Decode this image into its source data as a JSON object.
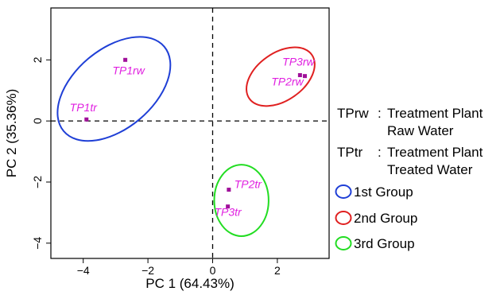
{
  "chart_data": {
    "type": "scatter",
    "xlabel": "PC 1 (64.43%)",
    "ylabel": "PC 2 (35.36%)",
    "xlim": [
      -5.0,
      3.6
    ],
    "ylim": [
      -4.5,
      3.7
    ],
    "xticks": [
      -4,
      -2,
      0,
      2
    ],
    "yticks": [
      -4,
      -2,
      0,
      2
    ],
    "xtick_labels": [
      "−4",
      "−2",
      "0",
      "2"
    ],
    "ytick_labels": [
      "−4",
      "−2",
      "0",
      "2"
    ],
    "reference_lines": {
      "x": 0,
      "y": 0,
      "style": "dashed"
    },
    "point_color": "#a0109a",
    "label_color": "#e020e0",
    "points": [
      {
        "label": "TP1rw",
        "x": -2.7,
        "y": 2.0
      },
      {
        "label": "TP1tr",
        "x": -3.9,
        "y": 0.05
      },
      {
        "label": "TP3rw",
        "x": 2.7,
        "y": 1.5
      },
      {
        "label": "TP2rw",
        "x": 2.85,
        "y": 1.47
      },
      {
        "label": "TP2tr",
        "x": 0.5,
        "y": -2.25
      },
      {
        "label": "TP3tr",
        "x": 0.47,
        "y": -2.8
      }
    ],
    "groups": [
      {
        "name": "1st Group",
        "color": "#1f3fd6",
        "cx": -3.05,
        "cy": 1.05,
        "rx": 2.03,
        "ry": 1.3,
        "angle_deg": 40
      },
      {
        "name": "2nd Group",
        "color": "#e02020",
        "cx": 2.1,
        "cy": 1.45,
        "rx": 1.18,
        "ry": 0.78,
        "angle_deg": 35
      },
      {
        "name": "3rd Group",
        "color": "#22dd22",
        "cx": 0.89,
        "cy": -2.6,
        "rx": 0.84,
        "ry": 1.17,
        "angle_deg": 0
      }
    ],
    "legend": {
      "definitions": [
        {
          "abbr": "TPrw",
          "sep": ":",
          "line1": "Treatment Plant",
          "line2": "Raw Water"
        },
        {
          "abbr": "TPtr",
          "sep": ":",
          "line1": "Treatment Plant",
          "line2": "Treated Water"
        }
      ],
      "group_labels": [
        "1st Group",
        "2nd Group",
        "3rd Group"
      ]
    }
  }
}
